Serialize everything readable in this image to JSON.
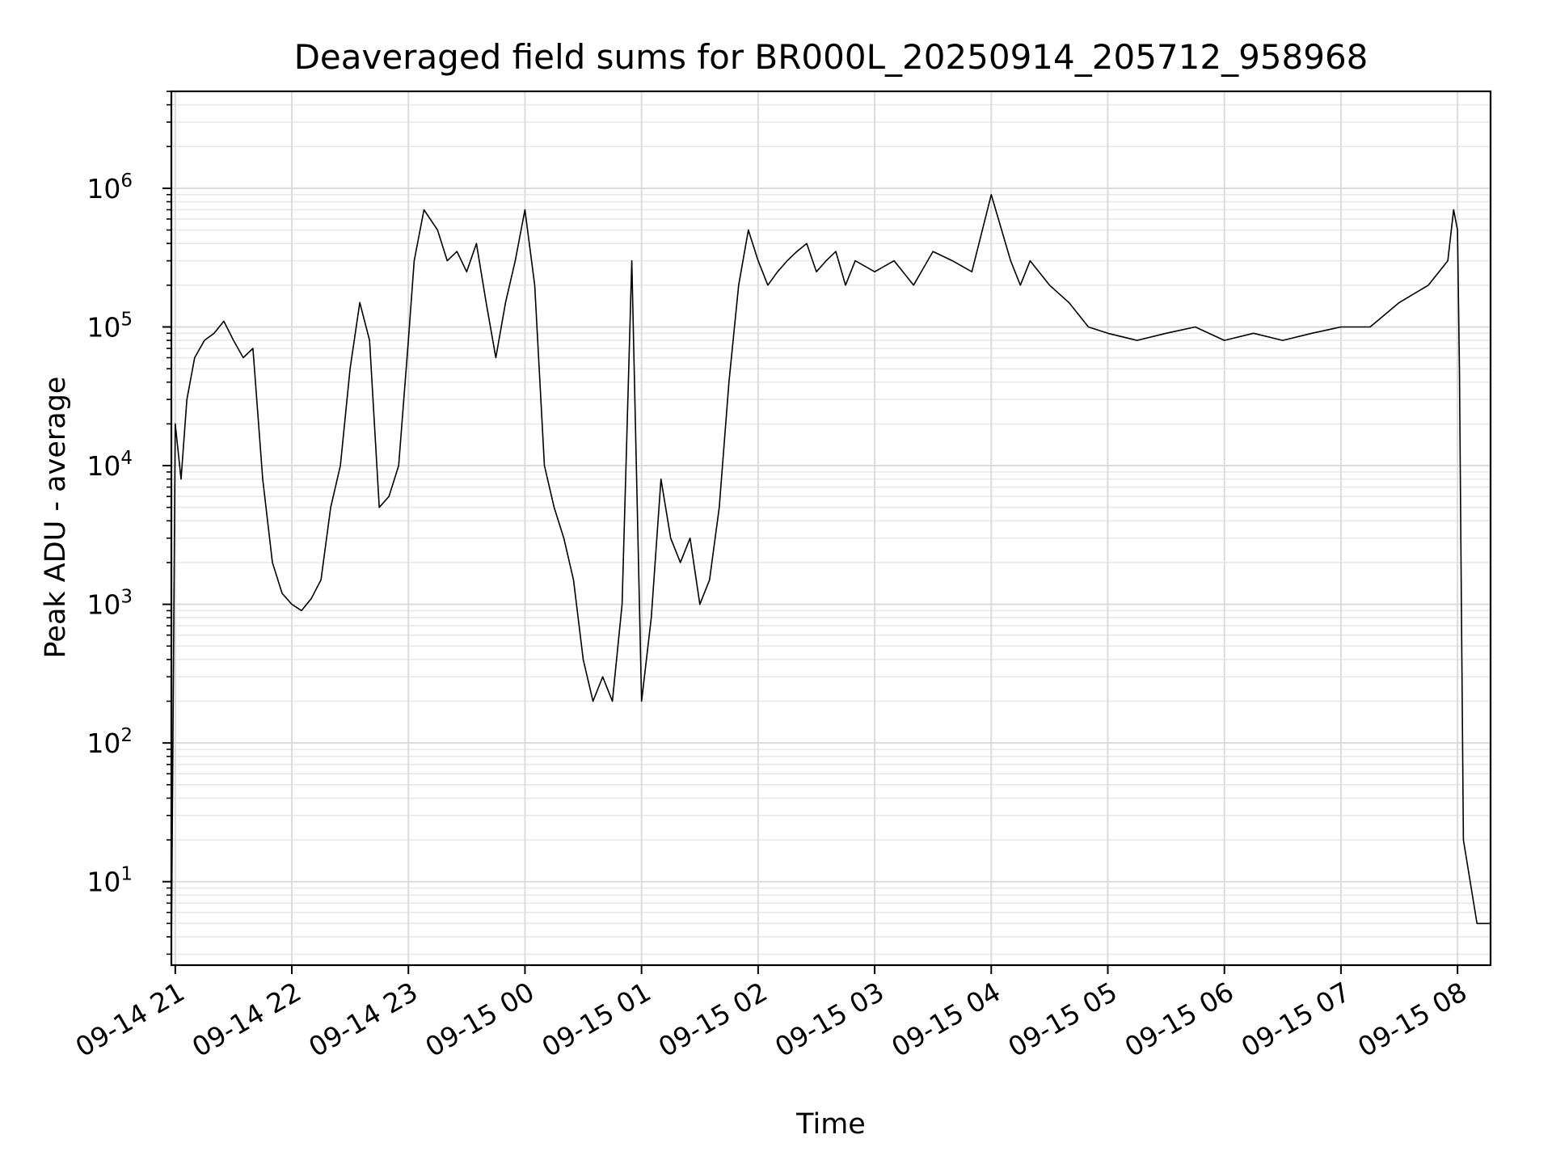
{
  "chart_data": {
    "type": "line",
    "title": "Deaveraged field sums for BR000L_20250914_205712_958968",
    "xlabel": "Time",
    "ylabel": "Peak ADU - average",
    "yscale": "log",
    "ylim": [
      2.5,
      5000000
    ],
    "xlim": [
      "09-14 20:58",
      "09-15 08:17"
    ],
    "grid": true,
    "line_color": "#000000",
    "x_ticks": [
      "09-14 21",
      "09-14 22",
      "09-14 23",
      "09-15 00",
      "09-15 01",
      "09-15 02",
      "09-15 03",
      "09-15 04",
      "09-15 05",
      "09-15 06",
      "09-15 07",
      "09-15 08"
    ],
    "y_ticks": [
      {
        "value": 10,
        "base": "10",
        "exp": "1"
      },
      {
        "value": 100,
        "base": "10",
        "exp": "2"
      },
      {
        "value": 1000,
        "base": "10",
        "exp": "3"
      },
      {
        "value": 10000,
        "base": "10",
        "exp": "4"
      },
      {
        "value": 100000,
        "base": "10",
        "exp": "5"
      },
      {
        "value": 1000000,
        "base": "10",
        "exp": "6"
      }
    ],
    "series": [
      {
        "x": [
          "09-14 20:58",
          "09-14 21:00",
          "09-14 21:03",
          "09-14 21:06",
          "09-14 21:10",
          "09-14 21:15",
          "09-14 21:20",
          "09-14 21:25",
          "09-14 21:30",
          "09-14 21:35",
          "09-14 21:40",
          "09-14 21:45",
          "09-14 21:50",
          "09-14 21:55",
          "09-14 22:00",
          "09-14 22:05",
          "09-14 22:10",
          "09-14 22:15",
          "09-14 22:20",
          "09-14 22:25",
          "09-14 22:30",
          "09-14 22:35",
          "09-14 22:40",
          "09-14 22:45",
          "09-14 22:50",
          "09-14 22:55",
          "09-14 23:00",
          "09-14 23:03",
          "09-14 23:08",
          "09-14 23:15",
          "09-14 23:20",
          "09-14 23:25",
          "09-14 23:30",
          "09-14 23:35",
          "09-14 23:40",
          "09-14 23:45",
          "09-14 23:50",
          "09-14 23:55",
          "09-15 00:00",
          "09-15 00:05",
          "09-15 00:10",
          "09-15 00:15",
          "09-15 00:20",
          "09-15 00:25",
          "09-15 00:30",
          "09-15 00:35",
          "09-15 00:40",
          "09-15 00:45",
          "09-15 00:50",
          "09-15 00:55",
          "09-15 01:00",
          "09-15 01:05",
          "09-15 01:10",
          "09-15 01:15",
          "09-15 01:20",
          "09-15 01:25",
          "09-15 01:30",
          "09-15 01:35",
          "09-15 01:40",
          "09-15 01:45",
          "09-15 01:50",
          "09-15 01:55",
          "09-15 02:00",
          "09-15 02:05",
          "09-15 02:10",
          "09-15 02:15",
          "09-15 02:20",
          "09-15 02:25",
          "09-15 02:30",
          "09-15 02:35",
          "09-15 02:40",
          "09-15 02:45",
          "09-15 02:50",
          "09-15 03:00",
          "09-15 03:10",
          "09-15 03:20",
          "09-15 03:30",
          "09-15 03:40",
          "09-15 03:50",
          "09-15 04:00",
          "09-15 04:10",
          "09-15 04:15",
          "09-15 04:20",
          "09-15 04:30",
          "09-15 04:40",
          "09-15 04:50",
          "09-15 05:00",
          "09-15 05:15",
          "09-15 05:30",
          "09-15 05:45",
          "09-15 06:00",
          "09-15 06:15",
          "09-15 06:30",
          "09-15 06:45",
          "09-15 07:00",
          "09-15 07:15",
          "09-15 07:30",
          "09-15 07:45",
          "09-15 07:55",
          "09-15 07:58",
          "09-15 08:00",
          "09-15 08:01",
          "09-15 08:02",
          "09-15 08:03",
          "09-15 08:10",
          "09-15 08:17"
        ],
        "y": [
          3,
          20000,
          8000,
          30000,
          60000,
          80000,
          90000,
          110000,
          80000,
          60000,
          70000,
          8000,
          2000,
          1200,
          1000,
          900,
          1100,
          1500,
          5000,
          10000,
          50000,
          150000,
          80000,
          5000,
          6000,
          10000,
          80000,
          300000,
          700000,
          500000,
          300000,
          350000,
          250000,
          400000,
          150000,
          60000,
          150000,
          300000,
          700000,
          200000,
          10000,
          5000,
          3000,
          1500,
          400,
          200,
          300,
          200,
          1000,
          300000,
          200,
          800,
          8000,
          3000,
          2000,
          3000,
          1000,
          1500,
          5000,
          40000,
          200000,
          500000,
          300000,
          200000,
          250000,
          300000,
          350000,
          400000,
          250000,
          300000,
          350000,
          200000,
          300000,
          250000,
          300000,
          200000,
          350000,
          300000,
          250000,
          900000,
          300000,
          200000,
          300000,
          200000,
          150000,
          100000,
          90000,
          80000,
          90000,
          100000,
          80000,
          90000,
          80000,
          90000,
          100000,
          100000,
          150000,
          200000,
          300000,
          700000,
          500000,
          50000,
          1000,
          20,
          5,
          5
        ]
      }
    ]
  }
}
